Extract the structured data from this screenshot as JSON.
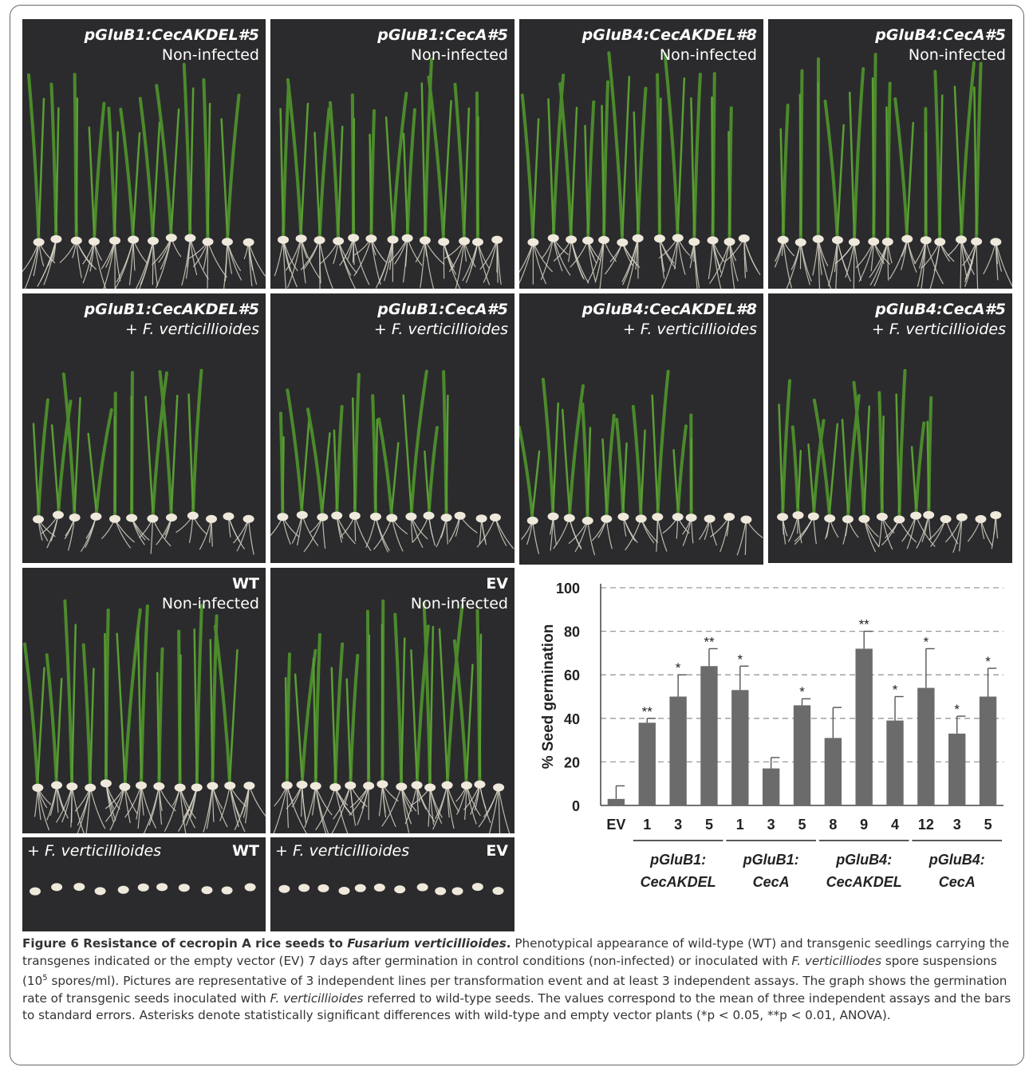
{
  "panels": {
    "p1": {
      "line1": "pGluB1:CecAKDEL#5",
      "line2": "Non-infected"
    },
    "p2": {
      "line1": "pGluB1:CecA#5",
      "line2": "Non-infected"
    },
    "p3": {
      "line1": "pGluB4:CecAKDEL#8",
      "line2": "Non-infected"
    },
    "p4": {
      "line1": "pGluB4:CecA#5",
      "line2": "Non-infected"
    },
    "p5": {
      "line1": "pGluB1:CecAKDEL#5",
      "line2": "+ F. verticillioides"
    },
    "p6": {
      "line1": "pGluB1:CecA#5",
      "line2": "+ F. verticillioides"
    },
    "p7": {
      "line1": "pGluB4:CecAKDEL#8",
      "line2": "+ F. verticillioides"
    },
    "p8": {
      "line1": "pGluB4:CecA#5",
      "line2": "+ F. verticillioides"
    },
    "p9": {
      "line1": "WT",
      "line2": "Non-infected"
    },
    "p10": {
      "line1": "EV",
      "line2": "Non-infected"
    },
    "p11": {
      "left": "+ F. verticillioides",
      "right": "WT"
    },
    "p12": {
      "left": "+ F. verticillioides",
      "right": "EV"
    }
  },
  "chart_data": {
    "type": "bar",
    "ylabel": "% Seed germination",
    "ylim": [
      0,
      100
    ],
    "yticks": [
      0,
      20,
      40,
      60,
      80,
      100
    ],
    "grid": "horizontal dashed",
    "categories": [
      "EV",
      "1",
      "3",
      "5",
      "1",
      "3",
      "5",
      "8",
      "9",
      "4",
      "12",
      "3",
      "5"
    ],
    "values": [
      3,
      38,
      50,
      64,
      53,
      17,
      46,
      31,
      72,
      39,
      54,
      33,
      50
    ],
    "errors": [
      6,
      2,
      10,
      8,
      11,
      5,
      3,
      14,
      8,
      11,
      18,
      8,
      13
    ],
    "significance": [
      "",
      "**",
      "*",
      "**",
      "*",
      "",
      "*",
      "",
      "**",
      "*",
      "*",
      "*",
      "*"
    ],
    "groups": [
      {
        "line1": "pGluB1:",
        "line2": "CecAKDEL",
        "start": 1,
        "end": 3
      },
      {
        "line1": "pGluB1:",
        "line2": "CecA",
        "start": 4,
        "end": 6
      },
      {
        "line1": "pGluB4:",
        "line2": "CecAKDEL",
        "start": 7,
        "end": 9
      },
      {
        "line1": "pGluB4:",
        "line2": "CecA",
        "start": 10,
        "end": 12
      }
    ],
    "bar_color": "#6b6b6b"
  },
  "caption": {
    "title_a": "Figure 6 Resistance of cecropin A rice seeds to ",
    "title_species": "Fusarium verticillioides",
    "title_end": ".",
    "t1": " Phenotypical appearance of wild-type (WT) and transgenic seedlings carrying the transgenes indicated or the empty vector (EV) 7 days after germination in control conditions (non-infected) or inoculated with ",
    "s1": "F. verticilliodes",
    "t2": " spore suspensions (10",
    "sup": "5",
    "t3": " spores/ml). Pictures are representative of 3 independent lines per transformation event and at least 3 independent assays. The graph shows the germination rate of transgenic seeds inoculated with ",
    "s2": "F. verticillioides",
    "t4": " referred to wild-type seeds. The values correspond to the mean of three independent assays and the bars to standard errors. Asterisks denote statistically significant differences with wild-type and empty vector plants (*p < 0.05, **p < 0.01, ANOVA)."
  }
}
